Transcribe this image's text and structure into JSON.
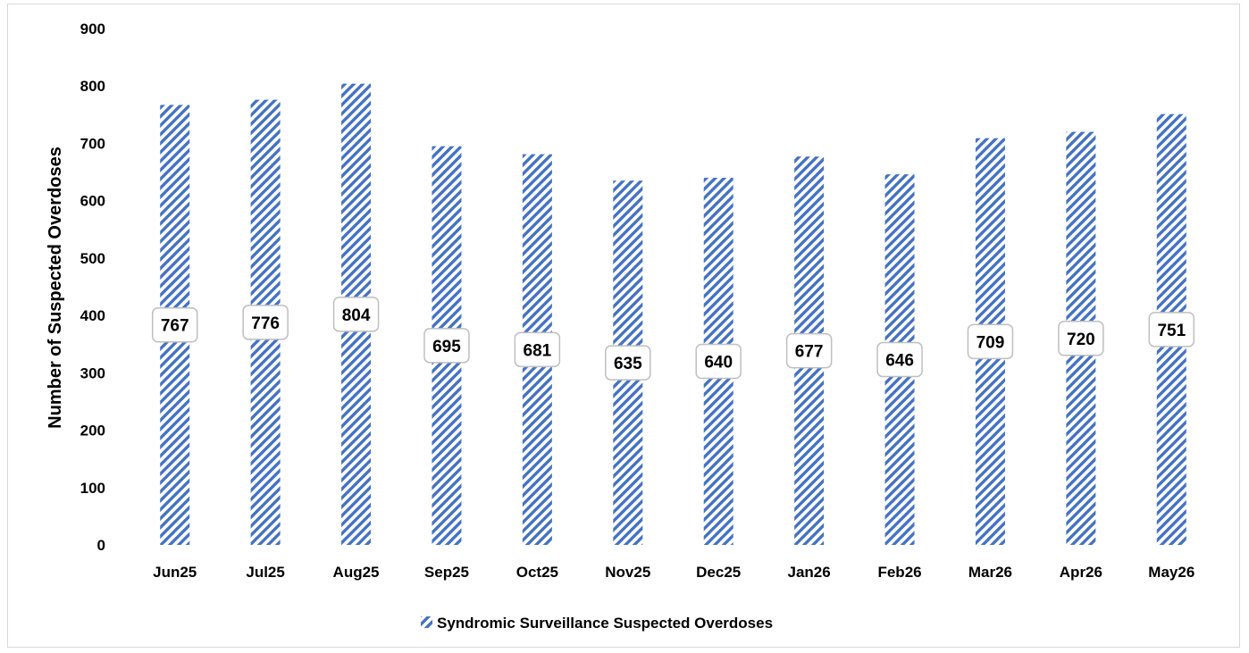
{
  "chart_data": {
    "type": "bar",
    "categories": [
      "Jun25",
      "Jul25",
      "Aug25",
      "Sep25",
      "Oct25",
      "Nov25",
      "Dec25",
      "Jan26",
      "Feb26",
      "Mar26",
      "Apr26",
      "May26"
    ],
    "series": [
      {
        "name": "Syndromic Surveillance Suspected Overdoses",
        "values": [
          767,
          776,
          804,
          695,
          681,
          635,
          640,
          677,
          646,
          709,
          720,
          751
        ],
        "color": "#4472c4",
        "pattern": "diagonal-stripes"
      }
    ],
    "ylabel": "Number of Suspected Overdoses",
    "xlabel": "",
    "ylim": [
      0,
      900
    ],
    "yticks": [
      0,
      100,
      200,
      300,
      400,
      500,
      600,
      700,
      800,
      900
    ],
    "grid": false,
    "legend": "bottom-center",
    "data_labels": true
  }
}
